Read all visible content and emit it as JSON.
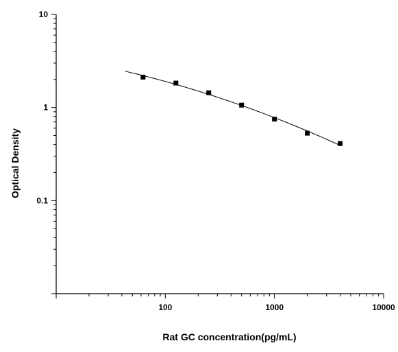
{
  "chart_data": {
    "type": "scatter",
    "title": "",
    "xlabel": "Rat GC concentration(pg/mL)",
    "ylabel": "Optical Density",
    "x_scale": "log",
    "y_scale": "log",
    "xlim": [
      10,
      10000
    ],
    "ylim": [
      0.01,
      10
    ],
    "x_ticks": [
      100,
      1000,
      10000
    ],
    "x_tick_labels": [
      "100",
      "1000",
      "10000"
    ],
    "y_ticks": [
      0.1,
      1,
      10
    ],
    "y_tick_labels": [
      "0.1",
      "1",
      "10"
    ],
    "grid": false,
    "legend": "none",
    "series": [
      {
        "marker": "square",
        "x": [
          62.5,
          125,
          250,
          500,
          1000,
          2000,
          4000
        ],
        "y": [
          2.12,
          1.83,
          1.44,
          1.06,
          0.75,
          0.53,
          0.41
        ]
      }
    ],
    "fit_curve": {
      "x_range": [
        43,
        4000
      ]
    },
    "colors": {
      "ink": "#000000",
      "background": "#ffffff"
    }
  }
}
